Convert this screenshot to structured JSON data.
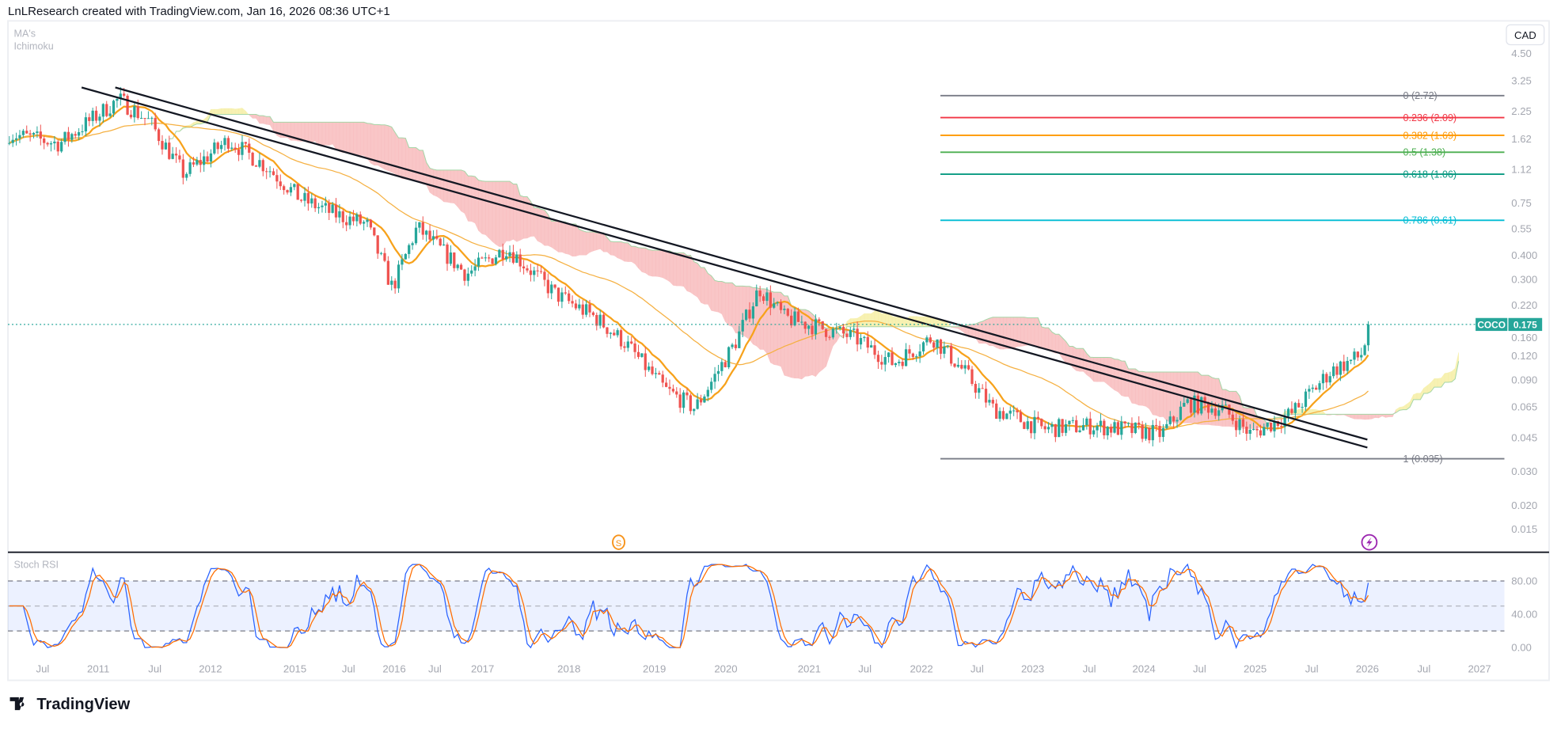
{
  "header": {
    "attribution": "LnLResearch created with TradingView.com, Jan 16, 2026 08:36 UTC+1"
  },
  "legend": {
    "indicator_1": "MA's",
    "indicator_2": "Ichimoku"
  },
  "currency_button": "CAD",
  "price_label": {
    "symbol": "COCO",
    "value": "0.175",
    "color": "#26a69a"
  },
  "stoch_pane": {
    "title": "Stoch RSI",
    "ticks": [
      "80.00",
      "40.00",
      "0.00"
    ]
  },
  "events": {
    "split_icon_label": "S",
    "split_color": "#f7931a",
    "flash_color": "#9c27b0"
  },
  "logo": {
    "text": "TradingView",
    "mark": "TV"
  },
  "colors": {
    "up": "#26a69a",
    "down": "#ef5350",
    "ma_fast": "#f7a21b",
    "ma_slow": "#f5b041",
    "cloud_bear": "#f8bcbd",
    "cloud_bull": "#f6efa6",
    "stoch_k": "#2962ff",
    "stoch_d": "#ff6d00"
  },
  "chart_data": {
    "type": "candlestick",
    "scale": "log",
    "price_ticks": [
      "4.50",
      "3.25",
      "2.25",
      "1.62",
      "1.12",
      "0.75",
      "0.55",
      "0.400",
      "0.300",
      "0.220",
      "0.160",
      "0.120",
      "0.090",
      "0.065",
      "0.045",
      "0.030",
      "0.020",
      "0.015"
    ],
    "x_ticks": [
      {
        "label": "Jul",
        "t": 2010.5
      },
      {
        "label": "2011",
        "t": 2011
      },
      {
        "label": "Jul",
        "t": 2011.5
      },
      {
        "label": "2012",
        "t": 2012
      },
      {
        "label": "2015",
        "t": 2015
      },
      {
        "label": "Jul",
        "t": 2015.5
      },
      {
        "label": "2016",
        "t": 2016
      },
      {
        "label": "Jul",
        "t": 2016.5
      },
      {
        "label": "2017",
        "t": 2017
      },
      {
        "label": "2018",
        "t": 2018
      },
      {
        "label": "2019",
        "t": 2019
      },
      {
        "label": "2020",
        "t": 2020
      },
      {
        "label": "2021",
        "t": 2021
      },
      {
        "label": "Jul",
        "t": 2021.5
      },
      {
        "label": "2022",
        "t": 2022
      },
      {
        "label": "Jul",
        "t": 2022.5
      },
      {
        "label": "2023",
        "t": 2023
      },
      {
        "label": "Jul",
        "t": 2023.5
      },
      {
        "label": "2024",
        "t": 2024
      },
      {
        "label": "Jul",
        "t": 2024.5
      },
      {
        "label": "2025",
        "t": 2025
      },
      {
        "label": "Jul",
        "t": 2025.5
      },
      {
        "label": "2026",
        "t": 2026
      },
      {
        "label": "Jul",
        "t": 2026.5
      },
      {
        "label": "2027",
        "t": 2027
      }
    ],
    "price_path": [
      [
        2010.2,
        1.72
      ],
      [
        2010.65,
        1.53
      ],
      [
        2011.18,
        2.6
      ],
      [
        2011.45,
        2.0
      ],
      [
        2011.76,
        1.06
      ],
      [
        2012.64,
        1.6
      ],
      [
        2014.05,
        1.14
      ],
      [
        2015.05,
        0.79
      ],
      [
        2015.36,
        0.66
      ],
      [
        2015.7,
        0.58
      ],
      [
        2015.98,
        0.27
      ],
      [
        2016.28,
        0.56
      ],
      [
        2016.83,
        0.32
      ],
      [
        2017.28,
        0.44
      ],
      [
        2017.85,
        0.25
      ],
      [
        2018.31,
        0.19
      ],
      [
        2018.66,
        0.14
      ],
      [
        2019.15,
        0.08
      ],
      [
        2019.57,
        0.064
      ],
      [
        2020.11,
        0.14
      ],
      [
        2020.4,
        0.27
      ],
      [
        2020.7,
        0.19
      ],
      [
        2021.4,
        0.15
      ],
      [
        2021.75,
        0.11
      ],
      [
        2022.1,
        0.15
      ],
      [
        2022.38,
        0.1
      ],
      [
        2022.64,
        0.064
      ],
      [
        2023.09,
        0.05
      ],
      [
        2023.53,
        0.052
      ],
      [
        2024.16,
        0.047
      ],
      [
        2024.38,
        0.068
      ],
      [
        2024.7,
        0.064
      ],
      [
        2024.96,
        0.047
      ],
      [
        2025.32,
        0.06
      ],
      [
        2025.67,
        0.1
      ],
      [
        2025.94,
        0.12
      ],
      [
        2026.03,
        0.175
      ]
    ],
    "last_price": 0.175,
    "trendlines": [
      {
        "from": [
          2010.85,
          3.0
        ],
        "to": [
          2026.0,
          0.04
        ]
      },
      {
        "from": [
          2011.15,
          3.0
        ],
        "to": [
          2026.0,
          0.044
        ]
      }
    ],
    "fibonacci": {
      "start_t": 2022.17,
      "levels": [
        {
          "label": "0 (2.72)",
          "price": 2.72,
          "color": "#787b86"
        },
        {
          "label": "0.236 (2.09)",
          "price": 2.09,
          "color": "#f23645"
        },
        {
          "label": "0.382 (1.69)",
          "price": 1.69,
          "color": "#ff9800"
        },
        {
          "label": "0.5 (1.38)",
          "price": 1.38,
          "color": "#4caf50"
        },
        {
          "label": "0.618 (1.06)",
          "price": 1.06,
          "color": "#089981"
        },
        {
          "label": "0.786 (0.61)",
          "price": 0.61,
          "color": "#00bcd4"
        },
        {
          "label": "1 (0.035)",
          "price": 0.035,
          "color": "#787b86"
        }
      ]
    },
    "indicators": [
      "Moving averages",
      "Ichimoku cloud",
      "Stoch RSI (K, D) with 20/80 bands"
    ]
  }
}
